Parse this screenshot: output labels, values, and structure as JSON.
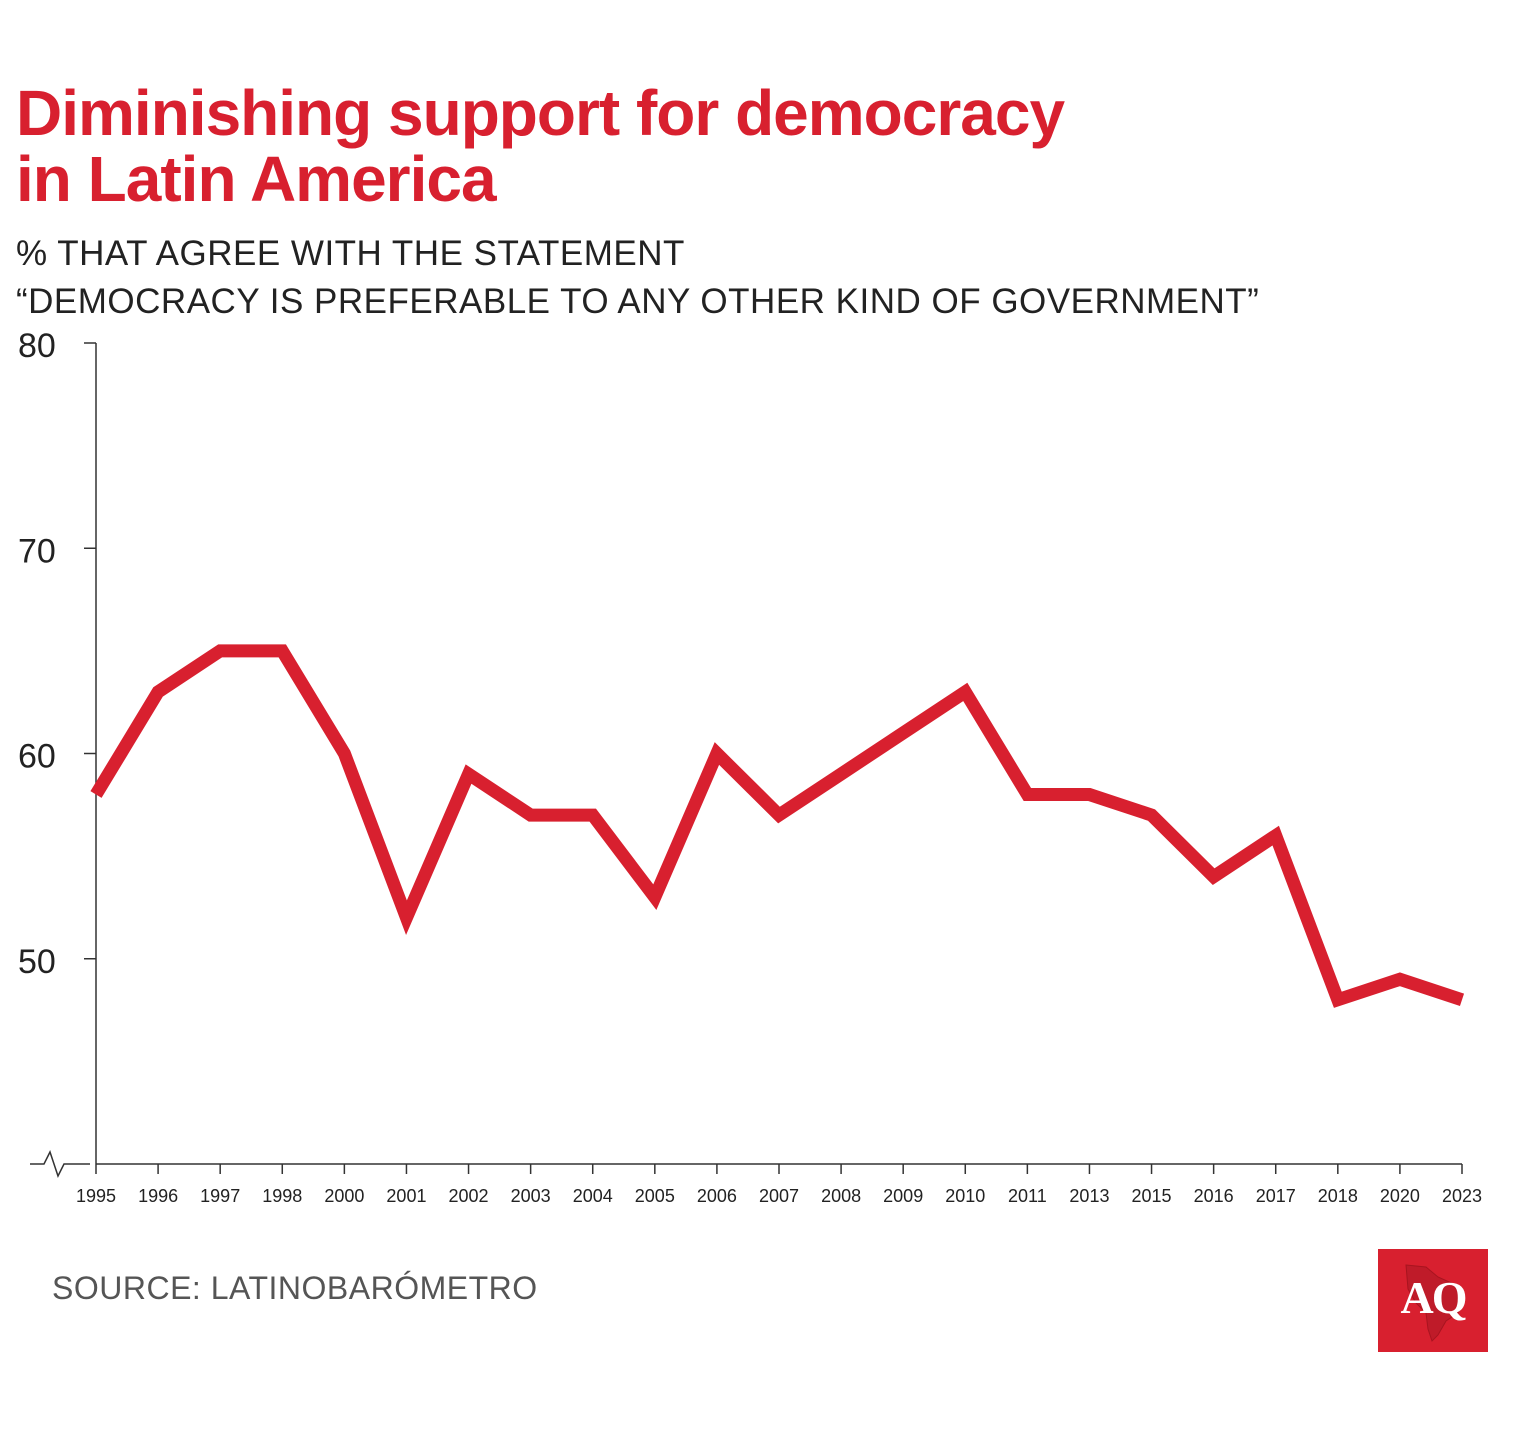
{
  "header": {
    "title_line1": "Diminishing support for democracy",
    "title_line2": "in Latin America",
    "subtitle_line1": "% THAT AGREE WITH THE STATEMENT",
    "subtitle_line2": "“DEMOCRACY IS PREFERABLE TO ANY OTHER KIND OF GOVERNMENT”"
  },
  "footer": {
    "source": "SOURCE: LATINOBARÓMETRO",
    "logo_text": "AQ"
  },
  "colors": {
    "accent": "#d8202f",
    "axis": "#333333",
    "text": "#222222"
  },
  "chart_data": {
    "type": "line",
    "title": "Diminishing support for democracy in Latin America",
    "ylabel": "% that agree with the statement",
    "xlabel": "",
    "ylim": [
      40,
      80
    ],
    "yticks": [
      50,
      60,
      70,
      80
    ],
    "axis_break": true,
    "categories": [
      "1995",
      "1996",
      "1997",
      "1998",
      "2000",
      "2001",
      "2002",
      "2003",
      "2004",
      "2005",
      "2006",
      "2007",
      "2008",
      "2009",
      "2010",
      "2011",
      "2013",
      "2015",
      "2016",
      "2017",
      "2018",
      "2020",
      "2023"
    ],
    "series": [
      {
        "name": "Democracy is preferable to any other kind of government",
        "values": [
          58,
          63,
          65,
          65,
          60,
          52,
          59,
          57,
          57,
          53,
          60,
          57,
          59,
          61,
          63,
          58,
          58,
          57,
          54,
          56,
          48,
          49,
          48
        ]
      }
    ]
  }
}
